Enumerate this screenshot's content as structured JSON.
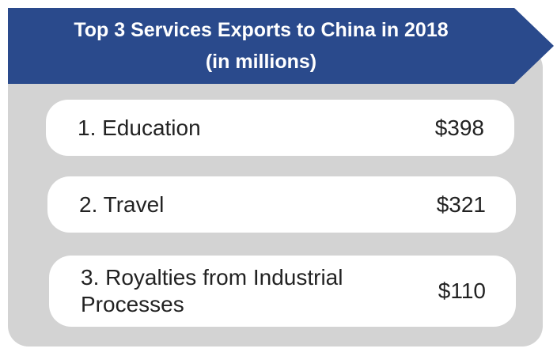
{
  "header": {
    "title_line1": "Top 3 Services Exports to China in 2018",
    "title_line2": "(in millions)",
    "color": "#2a4a8c"
  },
  "exports": [
    {
      "label": "1. Education",
      "value": "$398"
    },
    {
      "label": "2. Travel",
      "value": "$321"
    },
    {
      "label": "3. Royalties from Industrial Processes",
      "value": "$110"
    }
  ]
}
